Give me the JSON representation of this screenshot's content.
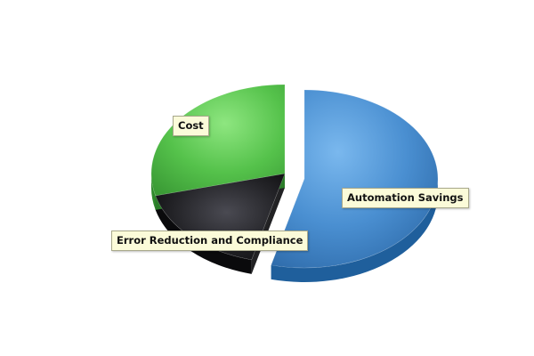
{
  "chart_data": {
    "type": "pie",
    "title": "",
    "slices": [
      {
        "label": "Automation Savings",
        "value": 54,
        "color": "#4a8fd1",
        "exploded": true
      },
      {
        "label": "Error Reduction and Compliance",
        "value": 17,
        "color": "#2a2a2f",
        "exploded": false
      },
      {
        "label": "Cost",
        "value": 29,
        "color": "#52c24a",
        "exploded": false
      }
    ],
    "legend": "none",
    "labels": "callout"
  }
}
